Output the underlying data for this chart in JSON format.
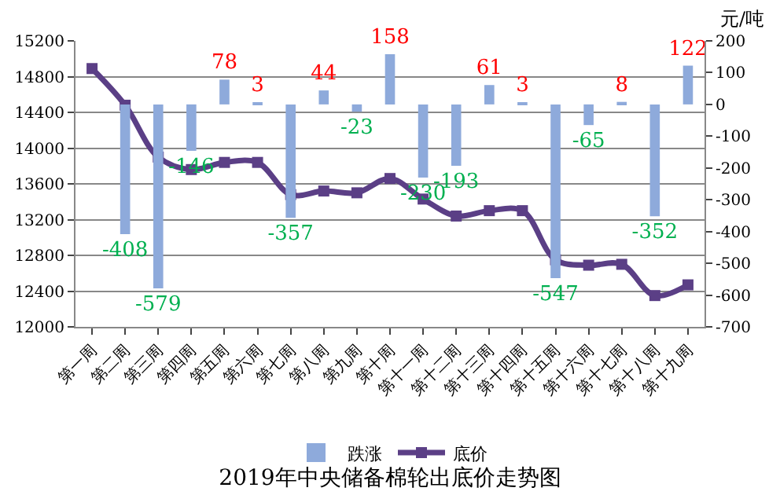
{
  "chart_data": {
    "type": "bar",
    "title": "2019年中央储备棉轮出底价走势图",
    "y2label": "元/吨",
    "categories": [
      "第一周",
      "第二周",
      "第三周",
      "第四周",
      "第五周",
      "第六周",
      "第七周",
      "第八周",
      "第九周",
      "第十周",
      "第十一周",
      "第十二周",
      "第十三周",
      "第十四周",
      "第十五周",
      "第十六周",
      "第十七周",
      "第十八周",
      "第十九周"
    ],
    "series": [
      {
        "name": "跌涨",
        "axis": "y2",
        "color": "#8eaadb",
        "values": [
          null,
          -408,
          -579,
          -146,
          78,
          3,
          -357,
          44,
          -23,
          158,
          -230,
          -193,
          61,
          3,
          -547,
          -65,
          8,
          -352,
          122
        ],
        "value_labels": [
          null,
          "-408",
          "-579",
          "-146",
          "78",
          "3",
          "-357",
          "44",
          "-23",
          "158",
          "-230",
          "-193",
          "61",
          "3",
          "-547",
          "-65",
          "8",
          "-352",
          "122"
        ]
      },
      {
        "name": "底价",
        "type": "line",
        "color": "#5b3f86",
        "marker": "square",
        "values": [
          14890,
          14480,
          13900,
          13760,
          13840,
          13840,
          13480,
          13520,
          13500,
          13660,
          13430,
          13240,
          13300,
          13300,
          12750,
          12690,
          12700,
          12350,
          12470
        ]
      }
    ],
    "ylim": [
      12000,
      15200
    ],
    "yticks": [
      12000,
      12400,
      12800,
      13200,
      13600,
      14000,
      14400,
      14800,
      15200
    ],
    "y2lim": [
      -700,
      200
    ],
    "y2ticks": [
      -700,
      -600,
      -500,
      -400,
      -300,
      -200,
      -100,
      0,
      100,
      200
    ],
    "grid": "y",
    "legend": "bottom"
  }
}
